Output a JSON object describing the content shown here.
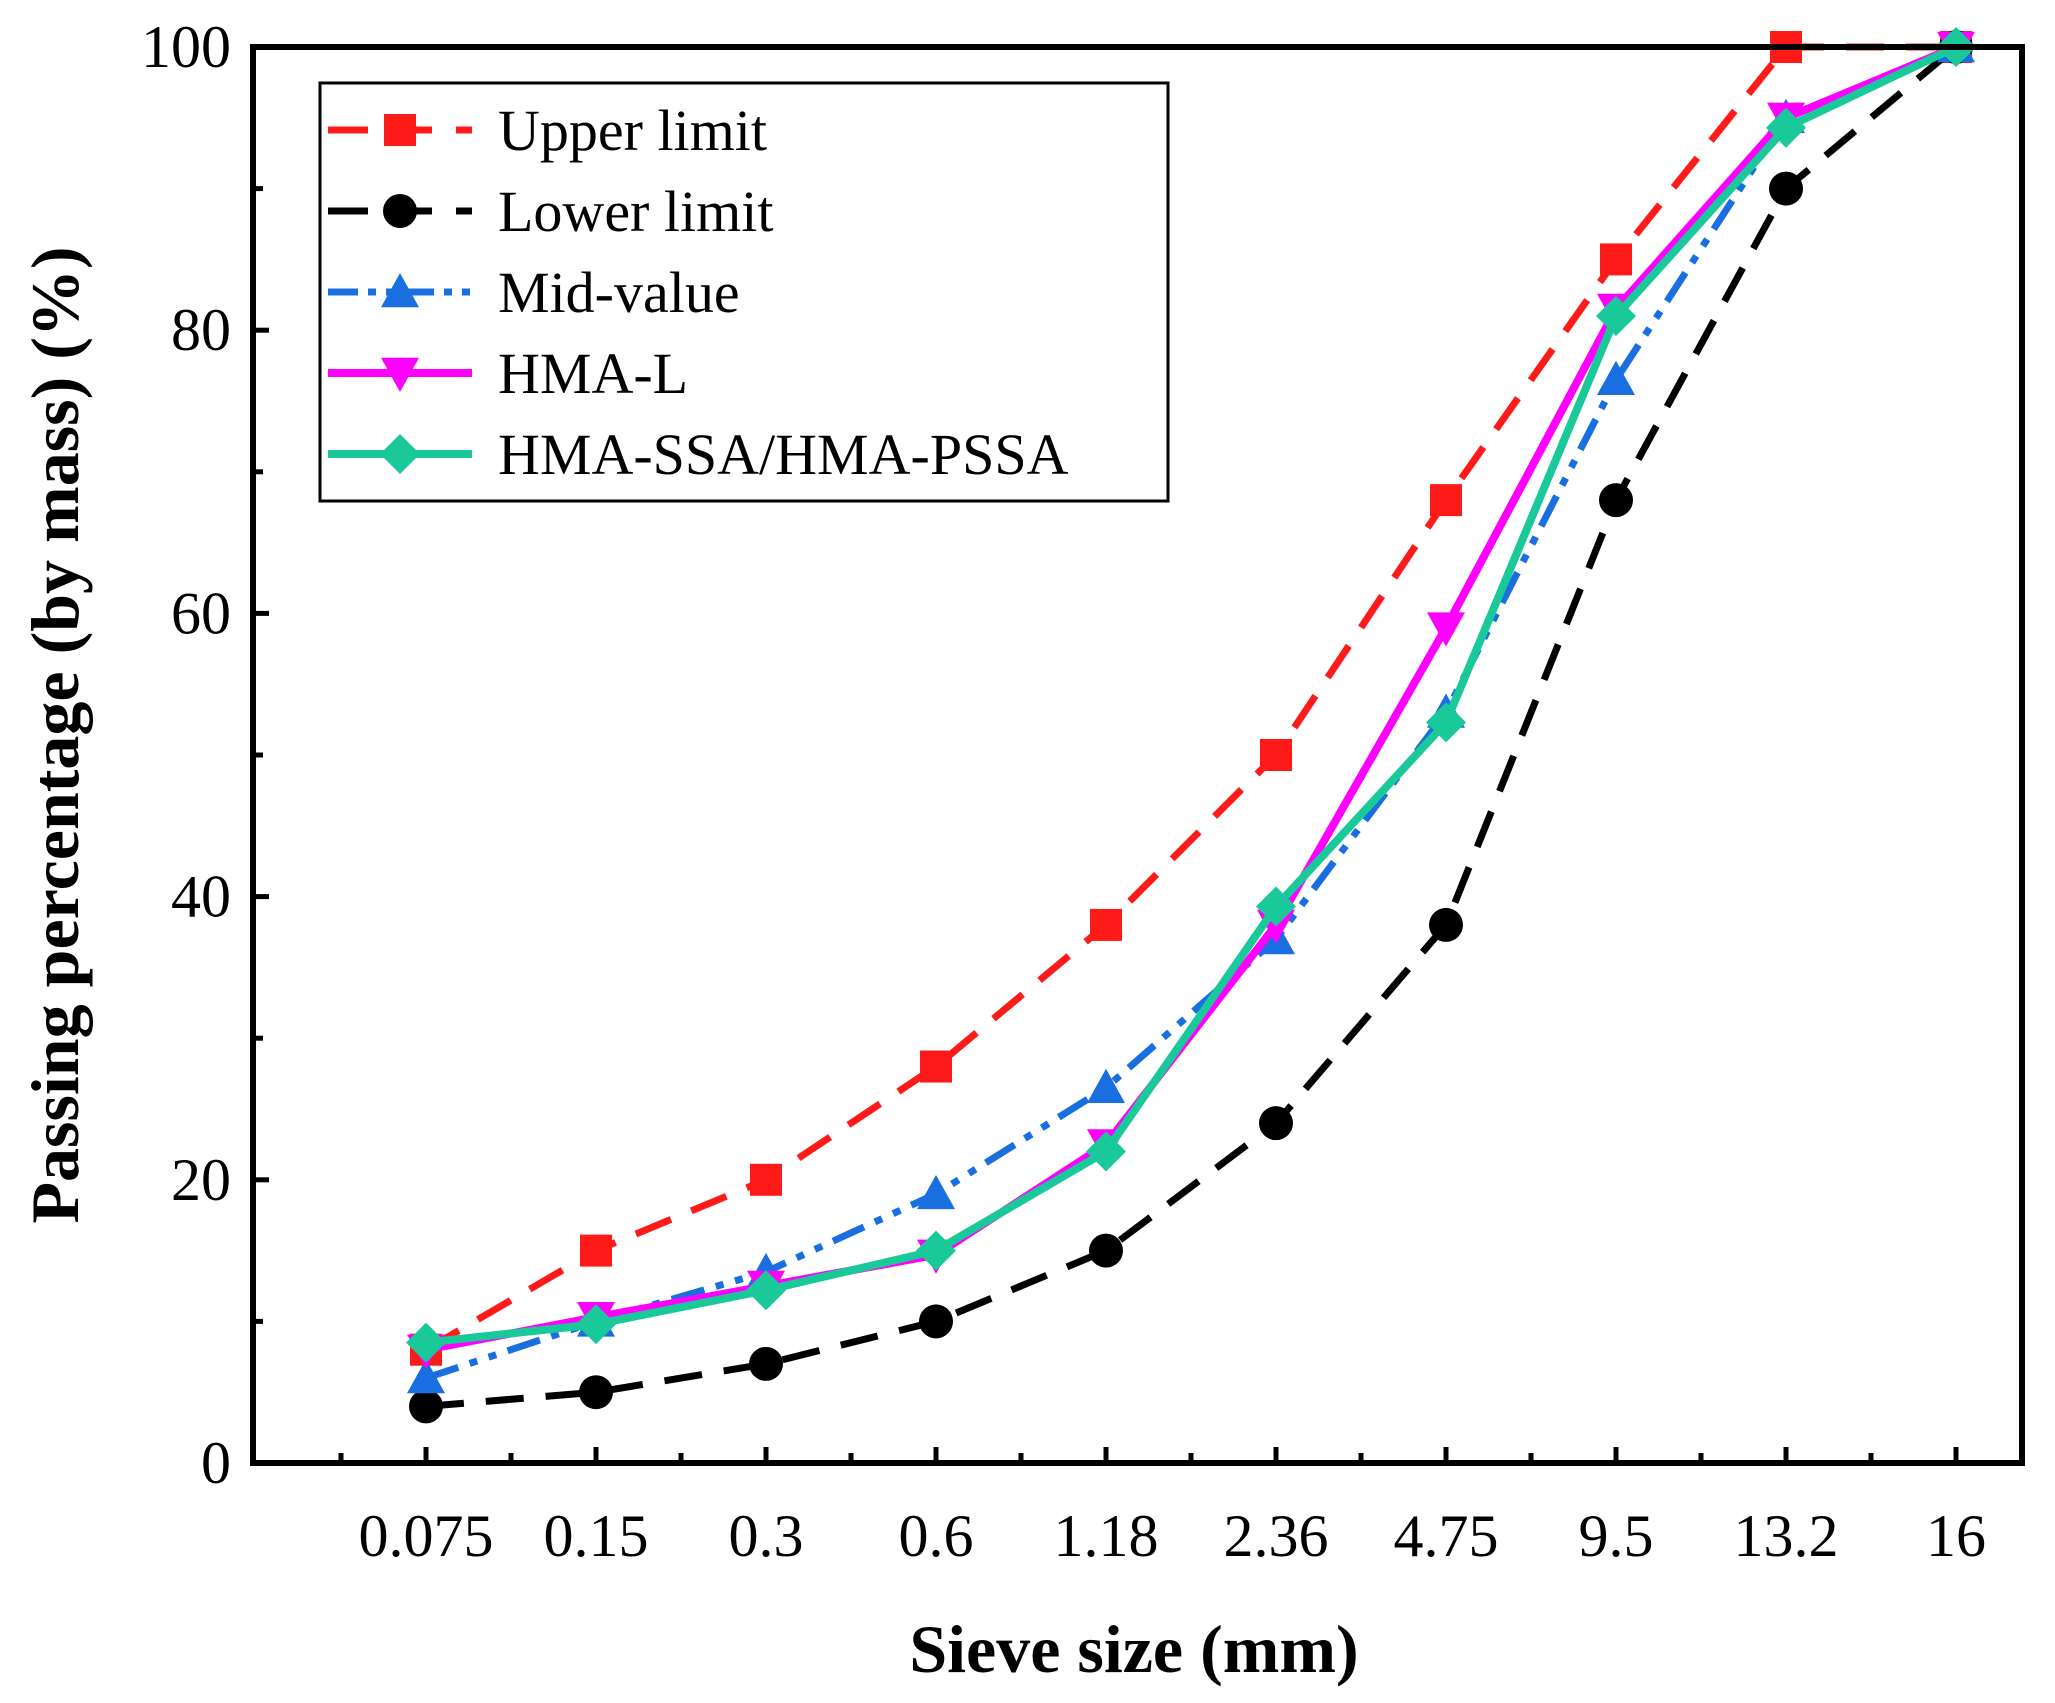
{
  "chart_data": {
    "type": "line",
    "title": "",
    "xlabel": "Sieve size (mm)",
    "ylabel": "Passing percentage (by mass) (%)",
    "categories": [
      "0.075",
      "0.15",
      "0.3",
      "0.6",
      "1.18",
      "2.36",
      "4.75",
      "9.5",
      "13.2",
      "16"
    ],
    "ylim": [
      0,
      100
    ],
    "yticks": [
      "0",
      "20",
      "40",
      "60",
      "80",
      "100"
    ],
    "legend_position": "top-left",
    "series": [
      {
        "name": "Upper limit",
        "color": "#ff1a1a",
        "dash": "dashed",
        "marker": "square",
        "values": [
          8,
          15,
          20,
          28,
          38,
          50,
          68,
          85,
          100,
          100
        ]
      },
      {
        "name": "Lower limit",
        "color": "#000000",
        "dash": "dashed",
        "marker": "circle",
        "values": [
          4,
          5,
          7,
          10,
          15,
          24,
          38,
          68,
          90,
          100
        ]
      },
      {
        "name": "Mid-value",
        "color": "#1a6fe0",
        "dash": "dashdotdot",
        "marker": "triangle-up",
        "values": [
          6,
          10,
          13.5,
          19,
          26.5,
          37,
          53,
          76.5,
          95,
          100
        ]
      },
      {
        "name": "HMA-L",
        "color": "#ff00ff",
        "dash": "solid",
        "marker": "triangle-down",
        "values": [
          8,
          10.3,
          12.5,
          14.7,
          22.5,
          38,
          59,
          81.5,
          95,
          100
        ]
      },
      {
        "name": "HMA-SSA/HMA-PSSA",
        "color": "#19c999",
        "dash": "solid",
        "marker": "diamond",
        "values": [
          8.5,
          9.8,
          12.2,
          15,
          22,
          39.3,
          52.3,
          81,
          94.3,
          100
        ]
      }
    ]
  }
}
